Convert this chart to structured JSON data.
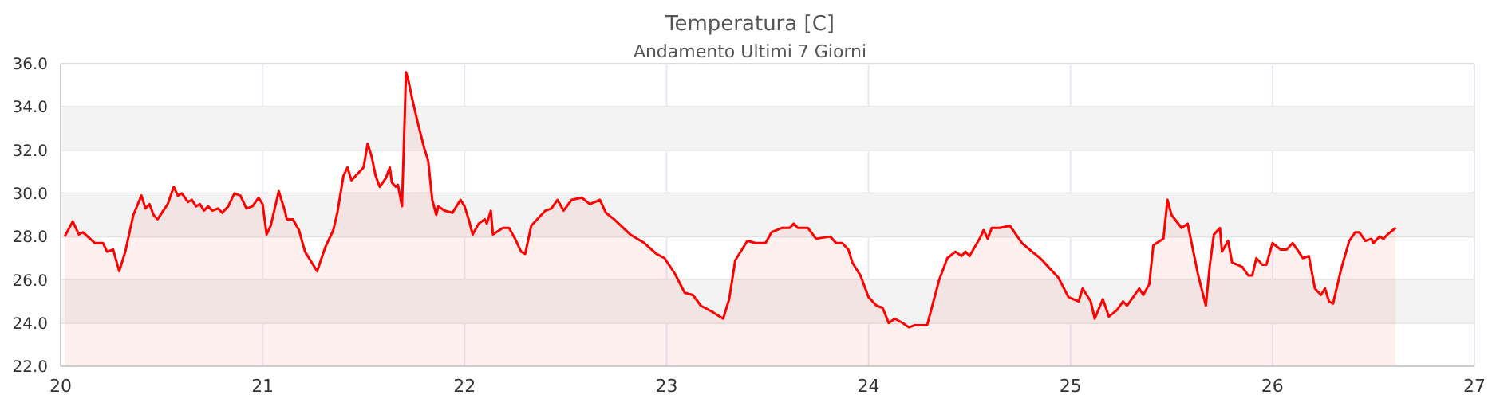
{
  "chart_data": {
    "type": "area",
    "title": "Temperatura [C]",
    "subtitle": "Andamento Ultimi 7 Giorni",
    "x": [
      20.02,
      20.06,
      20.09,
      20.11,
      20.17,
      20.21,
      20.23,
      20.26,
      20.29,
      20.32,
      20.36,
      20.4,
      20.42,
      20.44,
      20.46,
      20.48,
      20.53,
      20.56,
      20.58,
      20.6,
      20.63,
      20.65,
      20.67,
      20.69,
      20.71,
      20.73,
      20.75,
      20.78,
      20.8,
      20.83,
      20.86,
      20.89,
      20.92,
      20.95,
      20.98,
      21.0,
      21.02,
      21.04,
      21.08,
      21.11,
      21.12,
      21.15,
      21.18,
      21.21,
      21.25,
      21.27,
      21.31,
      21.35,
      21.37,
      21.4,
      21.42,
      21.44,
      21.46,
      21.5,
      21.52,
      21.54,
      21.56,
      21.58,
      21.61,
      21.63,
      21.64,
      21.66,
      21.67,
      21.69,
      21.7,
      21.71,
      21.72,
      21.74,
      21.77,
      21.8,
      21.82,
      21.84,
      21.86,
      21.87,
      21.9,
      21.94,
      21.98,
      22.0,
      22.02,
      22.04,
      22.07,
      22.1,
      22.11,
      22.13,
      22.14,
      22.19,
      22.22,
      22.25,
      22.28,
      22.3,
      22.33,
      22.4,
      22.43,
      22.46,
      22.49,
      22.53,
      22.58,
      22.62,
      22.67,
      22.7,
      22.74,
      22.82,
      22.89,
      22.95,
      22.99,
      23.04,
      23.09,
      23.13,
      23.17,
      23.23,
      23.28,
      23.31,
      23.34,
      23.4,
      23.44,
      23.49,
      23.52,
      23.57,
      23.61,
      23.63,
      23.65,
      23.7,
      23.74,
      23.81,
      23.84,
      23.87,
      23.9,
      23.92,
      23.96,
      24.0,
      24.04,
      24.07,
      24.1,
      24.13,
      24.17,
      24.2,
      24.23,
      24.29,
      24.31,
      24.35,
      24.39,
      24.43,
      24.46,
      24.48,
      24.5,
      24.55,
      24.57,
      24.59,
      24.61,
      24.65,
      24.7,
      24.76,
      24.81,
      24.85,
      24.89,
      24.94,
      24.99,
      25.04,
      25.06,
      25.1,
      25.12,
      25.16,
      25.19,
      25.23,
      25.26,
      25.28,
      25.34,
      25.36,
      25.39,
      25.41,
      25.46,
      25.48,
      25.5,
      25.55,
      25.58,
      25.63,
      25.67,
      25.69,
      25.71,
      25.74,
      25.75,
      25.78,
      25.8,
      25.85,
      25.88,
      25.9,
      25.92,
      25.95,
      25.97,
      26.0,
      26.04,
      26.07,
      26.1,
      26.13,
      26.15,
      26.18,
      26.21,
      26.24,
      26.26,
      26.28,
      26.3,
      26.34,
      26.38,
      26.41,
      26.43,
      26.46,
      26.49,
      26.5,
      26.53,
      26.55,
      26.57,
      26.61
    ],
    "series": [
      {
        "color": "#ff0000",
        "values": [
          28.0,
          28.7,
          28.1,
          28.2,
          27.7,
          27.7,
          27.3,
          27.4,
          26.4,
          27.3,
          29.0,
          29.9,
          29.3,
          29.5,
          29.0,
          28.8,
          29.5,
          30.3,
          29.9,
          30.0,
          29.6,
          29.7,
          29.4,
          29.5,
          29.2,
          29.4,
          29.2,
          29.3,
          29.1,
          29.4,
          30.0,
          29.9,
          29.3,
          29.4,
          29.8,
          29.5,
          28.1,
          28.5,
          30.1,
          29.2,
          28.8,
          28.8,
          28.3,
          27.3,
          26.7,
          26.4,
          27.5,
          28.3,
          29.1,
          30.8,
          31.2,
          30.6,
          30.8,
          31.2,
          32.3,
          31.7,
          30.8,
          30.3,
          30.7,
          31.2,
          30.5,
          30.3,
          30.4,
          29.4,
          32.4,
          35.6,
          35.3,
          34.4,
          33.2,
          32.1,
          31.5,
          29.7,
          29.0,
          29.4,
          29.2,
          29.1,
          29.7,
          29.4,
          28.8,
          28.1,
          28.6,
          28.8,
          28.6,
          29.2,
          28.1,
          28.4,
          28.4,
          27.9,
          27.3,
          27.2,
          28.5,
          29.2,
          29.3,
          29.7,
          29.2,
          29.7,
          29.8,
          29.5,
          29.7,
          29.1,
          28.8,
          28.1,
          27.7,
          27.2,
          27.0,
          26.3,
          25.4,
          25.3,
          24.8,
          24.5,
          24.2,
          25.1,
          26.9,
          27.8,
          27.7,
          27.7,
          28.2,
          28.4,
          28.4,
          28.6,
          28.4,
          28.4,
          27.9,
          28.0,
          27.7,
          27.7,
          27.4,
          26.8,
          26.2,
          25.2,
          24.8,
          24.7,
          24.0,
          24.2,
          24.0,
          23.8,
          23.9,
          23.9,
          24.6,
          26.0,
          27.0,
          27.3,
          27.1,
          27.3,
          27.1,
          27.9,
          28.3,
          27.9,
          28.4,
          28.4,
          28.5,
          27.7,
          27.3,
          27.0,
          26.6,
          26.1,
          25.2,
          25.0,
          25.6,
          25.0,
          24.2,
          25.1,
          24.3,
          24.6,
          25.0,
          24.8,
          25.6,
          25.3,
          25.8,
          27.6,
          27.9,
          29.7,
          29.0,
          28.4,
          28.6,
          26.3,
          24.8,
          26.7,
          28.1,
          28.4,
          27.3,
          27.8,
          26.8,
          26.6,
          26.2,
          26.2,
          27.0,
          26.7,
          26.7,
          27.7,
          27.4,
          27.4,
          27.7,
          27.3,
          27.0,
          27.1,
          25.6,
          25.3,
          25.6,
          25.0,
          24.9,
          26.5,
          27.8,
          28.2,
          28.2,
          27.8,
          27.9,
          27.7,
          28.0,
          27.9,
          28.1,
          28.4
        ]
      }
    ],
    "xlim": [
      20,
      27
    ],
    "xticks": [
      20,
      21,
      22,
      23,
      24,
      25,
      26,
      27
    ],
    "ylim": [
      22,
      36
    ],
    "yticks": [
      {
        "value": 22,
        "label": "22.0"
      },
      {
        "value": 24,
        "label": "24.0"
      },
      {
        "value": 26,
        "label": "26.0"
      },
      {
        "value": 28,
        "label": "28.0"
      },
      {
        "value": 30,
        "label": "30.0"
      },
      {
        "value": 32,
        "label": "32.0"
      },
      {
        "value": 34,
        "label": "34.0"
      },
      {
        "value": 36,
        "label": "36.0"
      }
    ],
    "bands": [
      {
        "axis": "y",
        "from": 24,
        "to": 26,
        "color": "#f3f3f3"
      },
      {
        "axis": "y",
        "from": 28,
        "to": 30,
        "color": "#f3f3f3"
      },
      {
        "axis": "y",
        "from": 32,
        "to": 34,
        "color": "#f3f3f3"
      }
    ],
    "grid": true
  }
}
